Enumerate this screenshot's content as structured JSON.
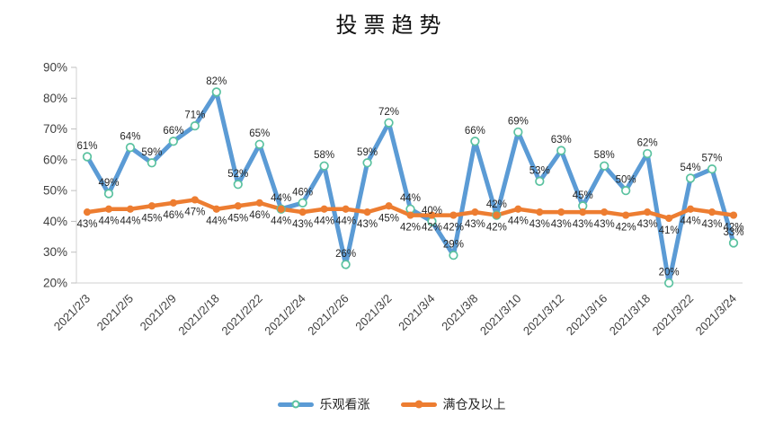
{
  "title": "投票趋势",
  "colors": {
    "optimistic_line": "#5B9BD5",
    "optimistic_marker_ring": "#5BC2A0",
    "full_position_line": "#ED7D31",
    "axis_line": "#D0D0D0",
    "tick_mark": "#BFBFBF",
    "axis_text": "#404040",
    "data_label_text": "#262626"
  },
  "legend": {
    "items": [
      {
        "label": "乐观看涨"
      },
      {
        "label": "满仓及以上"
      }
    ]
  },
  "chart_data": {
    "type": "line",
    "title": "投票趋势",
    "xlabel": "",
    "ylabel": "",
    "ylim": [
      20,
      90
    ],
    "grid": false,
    "legend_position": "bottom",
    "y_tick_labels": [
      "90%",
      "80%",
      "70%",
      "60%",
      "50%",
      "40%",
      "30%",
      "20%"
    ],
    "y_tick_values": [
      90,
      80,
      70,
      60,
      50,
      40,
      30,
      20
    ],
    "n_points": 31,
    "x_tick_every": 2,
    "x_tick_labels": [
      "2021/2/3",
      "2021/2/5",
      "2021/2/9",
      "2021/2/18",
      "2021/2/22",
      "2021/2/24",
      "2021/2/26",
      "2021/3/2",
      "2021/3/4",
      "2021/3/8",
      "2021/3/10",
      "2021/3/12",
      "2021/3/16",
      "2021/3/18",
      "2021/3/22",
      "2021/3/24"
    ],
    "series": [
      {
        "name": "乐观看涨",
        "color": "#5B9BD5",
        "marker": "open-circle",
        "marker_ring": "#5BC2A0",
        "label_position": "above",
        "values": [
          61,
          49,
          64,
          59,
          66,
          71,
          82,
          52,
          65,
          44,
          46,
          58,
          26,
          59,
          72,
          44,
          40,
          29,
          66,
          42,
          69,
          53,
          63,
          45,
          58,
          50,
          62,
          20,
          54,
          57,
          33
        ]
      },
      {
        "name": "满仓及以上",
        "color": "#ED7D31",
        "marker": "solid-circle",
        "label_position": "below",
        "values": [
          43,
          44,
          44,
          45,
          46,
          47,
          44,
          45,
          46,
          44,
          43,
          44,
          44,
          43,
          45,
          42,
          42,
          42,
          43,
          42,
          44,
          43,
          43,
          43,
          43,
          42,
          43,
          41,
          44,
          43,
          42
        ]
      }
    ]
  }
}
